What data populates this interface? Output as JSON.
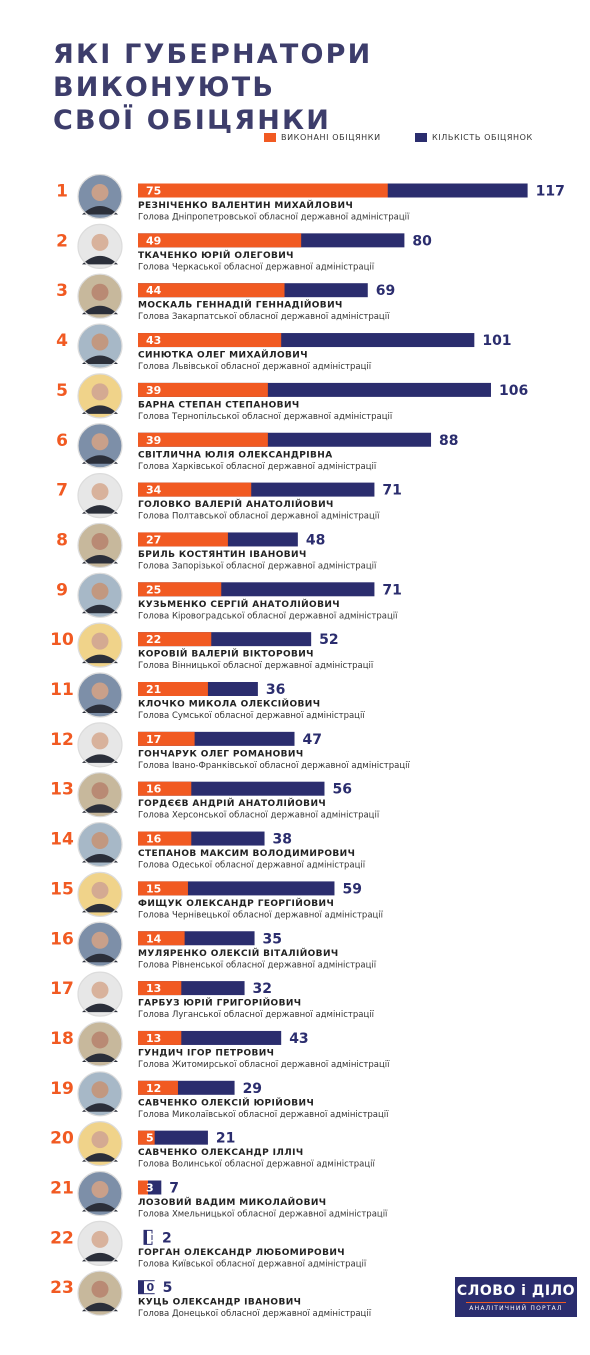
{
  "title_lines": [
    "ЯКІ ГУБЕРНАТОРИ ВИКОНУЮТЬ",
    "СВОЇ ОБІЦЯНКИ"
  ],
  "colors": {
    "done": "#f15a22",
    "total": "#2b2d6e",
    "title": "#3d3d6b"
  },
  "logo": {
    "name": "СЛОВО і ДІЛО",
    "tagline": "АНАЛІТИЧНИЙ ПОРТАЛ"
  },
  "chart_data": {
    "type": "bar",
    "orientation": "horizontal",
    "stacked": "overlay",
    "title": "ЯКІ ГУБЕРНАТОРИ ВИКОНУЮТЬ СВОЇ ОБІЦЯНКИ",
    "legend": {
      "position": "top-right"
    },
    "grid": false,
    "series": [
      {
        "name": "ВИКОНАНІ ОБІЦЯНКИ",
        "key": "done",
        "color": "#f15a22",
        "values": [
          75,
          49,
          44,
          43,
          39,
          39,
          34,
          27,
          25,
          22,
          21,
          17,
          16,
          16,
          15,
          14,
          13,
          13,
          12,
          5,
          3,
          0,
          0
        ]
      },
      {
        "name": "КІЛЬКІСТЬ ОБІЦЯНОК",
        "key": "total",
        "color": "#2b2d6e",
        "values": [
          117,
          80,
          69,
          101,
          106,
          88,
          71,
          48,
          71,
          52,
          36,
          47,
          56,
          38,
          59,
          35,
          32,
          43,
          29,
          21,
          7,
          2,
          5
        ]
      }
    ],
    "rows": [
      {
        "rank": "1",
        "name": "РЕЗНІЧЕНКО ВАЛЕНТИН МИХАЙЛОВИЧ",
        "position": "Голова Дніпропетровської обласної державної адміністрації"
      },
      {
        "rank": "2",
        "name": "ТКАЧЕНКО ЮРІЙ ОЛЕГОВИЧ",
        "position": "Голова Черкаської обласної державної адміністрації"
      },
      {
        "rank": "3",
        "name": "МОСКАЛЬ ГЕННАДІЙ ГЕННАДІЙОВИЧ",
        "position": "Голова Закарпатської обласної державної адміністрації"
      },
      {
        "rank": "4",
        "name": "СИНЮТКА ОЛЕГ МИХАЙЛОВИЧ",
        "position": "Голова Львівської обласної державної адміністрації"
      },
      {
        "rank": "5",
        "name": "БАРНА СТЕПАН СТЕПАНОВИЧ",
        "position": "Голова Тернопільської обласної державної адміністрації"
      },
      {
        "rank": "6",
        "name": "СВІТЛИЧНА ЮЛІЯ ОЛЕКСАНДРІВНА",
        "position": "Голова Харківської обласної державної адміністрації"
      },
      {
        "rank": "7",
        "name": "ГОЛОВКО ВАЛЕРІЙ АНАТОЛІЙОВИЧ",
        "position": "Голова Полтавської обласної державної адміністрації"
      },
      {
        "rank": "8",
        "name": "БРИЛЬ КОСТЯНТИН ІВАНОВИЧ",
        "position": "Голова Запорізької обласної державної адміністрації"
      },
      {
        "rank": "9",
        "name": "КУЗЬМЕНКО СЕРГІЙ АНАТОЛІЙОВИЧ",
        "position": "Голова Кіровоградської обласної державної адміністрації"
      },
      {
        "rank": "10",
        "name": "КОРОВІЙ ВАЛЕРІЙ ВІКТОРОВИЧ",
        "position": "Голова Вінницької обласної державної адміністрації"
      },
      {
        "rank": "11",
        "name": "КЛОЧКО МИКОЛА ОЛЕКСІЙОВИЧ",
        "position": "Голова Сумської обласної державної адміністрації"
      },
      {
        "rank": "12",
        "name": "ГОНЧАРУК ОЛЕГ РОМАНОВИЧ",
        "position": "Голова Івано-Франківської обласної державної адміністрації"
      },
      {
        "rank": "13",
        "name": "ГОРДЄЄВ АНДРІЙ АНАТОЛІЙОВИЧ",
        "position": "Голова Херсонської обласної державної адміністрації"
      },
      {
        "rank": "14",
        "name": "СТЕПАНОВ МАКСИМ ВОЛОДИМИРОВИЧ",
        "position": "Голова Одеської обласної державної адміністрації"
      },
      {
        "rank": "15",
        "name": "ФИЩУК ОЛЕКСАНДР ГЕОРГІЙОВИЧ",
        "position": "Голова Чернівецької обласної державної адміністрації"
      },
      {
        "rank": "16",
        "name": "МУЛЯРЕНКО ОЛЕКСІЙ ВІТАЛІЙОВИЧ",
        "position": "Голова Рівненської обласної державної адміністрації"
      },
      {
        "rank": "17",
        "name": "ГАРБУЗ ЮРІЙ ГРИГОРІЙОВИЧ",
        "position": "Голова Луганської обласної державної адміністрації"
      },
      {
        "rank": "18",
        "name": "ГУНДИЧ ІГОР ПЕТРОВИЧ",
        "position": "Голова Житомирської обласної державної адміністрації"
      },
      {
        "rank": "19",
        "name": "САВЧЕНКО ОЛЕКСІЙ ЮРІЙОВИЧ",
        "position": "Голова Миколаївської обласної державної адміністрації"
      },
      {
        "rank": "20",
        "name": "САВЧЕНКО ОЛЕКСАНДР ІЛЛІЧ",
        "position": "Голова Волинської обласної державної адміністрації"
      },
      {
        "rank": "21",
        "name": "ЛОЗОВИЙ ВАДИМ МИКОЛАЙОВИЧ",
        "position": "Голова Хмельницької обласної державної адміністрації"
      },
      {
        "rank": "22",
        "name": "ГОРГАН ОЛЕКСАНДР ЛЮБОМИРОВИЧ",
        "position": "Голова Київської обласної державної адміністрації"
      },
      {
        "rank": "23",
        "name": "КУЦЬ ОЛЕКСАНДР ІВАНОВИЧ",
        "position": "Голова Донецької обласної державної адміністрації"
      }
    ]
  }
}
